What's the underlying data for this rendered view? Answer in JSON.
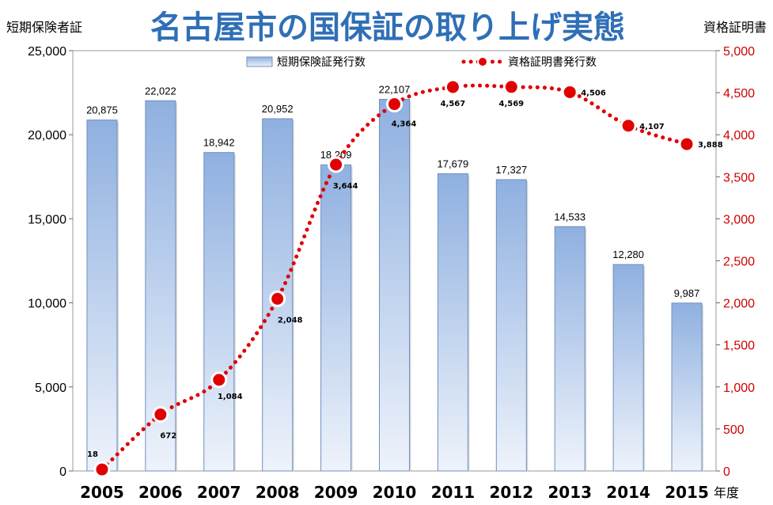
{
  "chart_data": {
    "type": "bar",
    "title": "名古屋市の国保証の取り上げ実態",
    "ylabel_left": "短期保険者証",
    "ylabel_right": "資格証明書",
    "xlabel": "年度",
    "categories": [
      "2005",
      "2006",
      "2007",
      "2008",
      "2009",
      "2010",
      "2011",
      "2012",
      "2013",
      "2014",
      "2015"
    ],
    "ylim_left": [
      0,
      25000
    ],
    "ylim_right": [
      0,
      5000
    ],
    "yticks_left": [
      "0",
      "5,000",
      "10,000",
      "15,000",
      "20,000",
      "25,000"
    ],
    "yticks_right": [
      "0",
      "500",
      "1,000",
      "1,500",
      "2,000",
      "2,500",
      "3,000",
      "3,500",
      "4,000",
      "4,500",
      "5,000"
    ],
    "series": [
      {
        "name": "短期保険証発行数",
        "type": "bar",
        "axis": "left",
        "values": [
          20875,
          22022,
          18942,
          20952,
          18209,
          22107,
          17679,
          17327,
          14533,
          12280,
          9987
        ],
        "labels": [
          "20,875",
          "22,022",
          "18,942",
          "20,952",
          "18,209",
          "22,107",
          "17,679",
          "17,327",
          "14,533",
          "12,280",
          "9,987"
        ]
      },
      {
        "name": "資格証明書発行数",
        "type": "line",
        "axis": "right",
        "values": [
          18,
          672,
          1084,
          2048,
          3644,
          4364,
          4567,
          4569,
          4506,
          4107,
          3888
        ],
        "labels": [
          "18",
          "672",
          "1,084",
          "2,048",
          "3,644",
          "4,364",
          "4,567",
          "4,569",
          "4,506",
          "4,107",
          "3,888"
        ]
      }
    ],
    "grid": false,
    "legend_position": "top",
    "colors": {
      "bar": "#8fb0e0",
      "line": "#e00000",
      "title": "#2f6fb6",
      "right_axis": "#d00000"
    }
  }
}
